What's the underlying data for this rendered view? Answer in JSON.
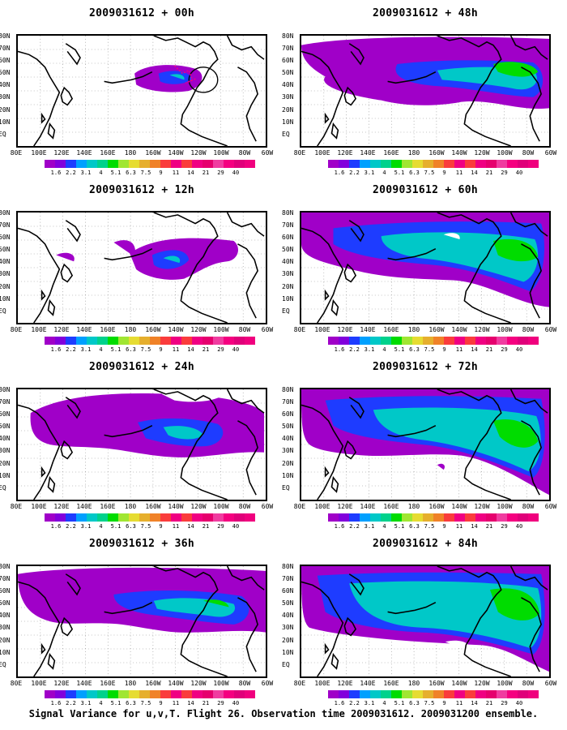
{
  "panels": [
    {
      "title": "2009031612 + 00h"
    },
    {
      "title": "2009031612 + 48h"
    },
    {
      "title": "2009031612 + 12h"
    },
    {
      "title": "2009031612 + 60h"
    },
    {
      "title": "2009031612 + 24h"
    },
    {
      "title": "2009031612 + 72h"
    },
    {
      "title": "2009031612 + 36h"
    },
    {
      "title": "2009031612 + 84h"
    }
  ],
  "y_axis_labels": [
    "80N",
    "70N",
    "60N",
    "50N",
    "40N",
    "30N",
    "20N",
    "10N",
    "EQ"
  ],
  "x_axis_labels": [
    "80E",
    "100E",
    "120E",
    "140E",
    "160E",
    "180",
    "160W",
    "140W",
    "120W",
    "100W",
    "80W",
    "60W"
  ],
  "colorbar": {
    "labels": [
      "1.6",
      "2.2",
      "3.1",
      "4",
      "5.1",
      "6.3",
      "7.5",
      "9",
      "11",
      "14",
      "21",
      "29",
      "40"
    ],
    "colors": [
      "#a000c8",
      "#8200dc",
      "#1e3cff",
      "#00a0ff",
      "#00c8c8",
      "#00d28c",
      "#00dc00",
      "#a0e632",
      "#e6dc32",
      "#e6af2d",
      "#f08228",
      "#fa3c3c",
      "#f00082"
    ]
  },
  "footer": "Signal Variance for u,v,T. Flight 26. Observation time 2009031612. 2009031200 ensemble."
}
